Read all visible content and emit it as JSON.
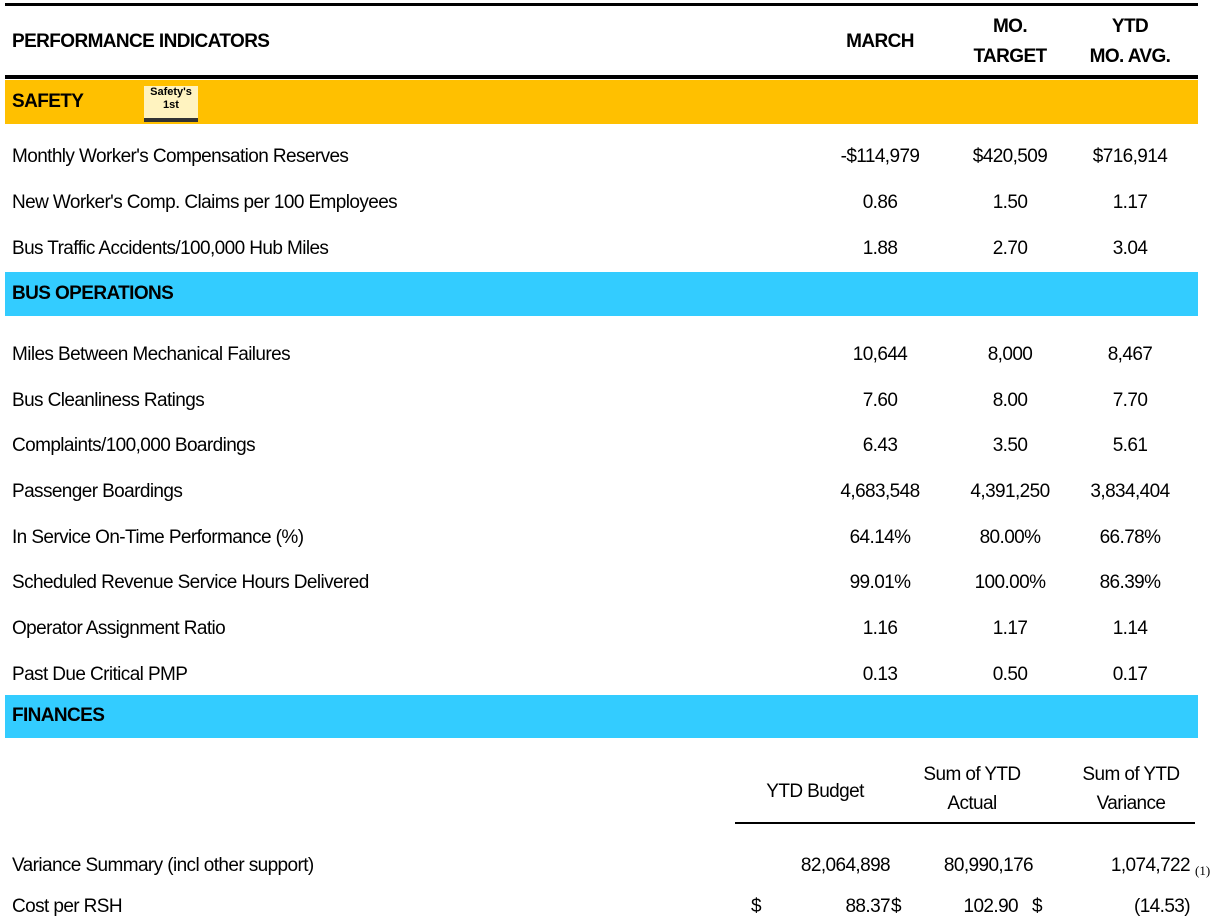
{
  "header": {
    "title": "PERFORMANCE INDICATORS",
    "columns": [
      [
        "MARCH"
      ],
      [
        "MO.",
        "TARGET"
      ],
      [
        "YTD",
        "MO. AVG."
      ]
    ]
  },
  "sections": [
    {
      "title": "SAFETY",
      "icon": [
        "Safety's",
        "1st"
      ],
      "rows": [
        [
          "Monthly Worker's Compensation Reserves",
          "-$114,979",
          "$420,509",
          "$716,914"
        ],
        [
          "New Worker's Comp. Claims per 100 Employees",
          "0.86",
          "1.50",
          "1.17"
        ],
        [
          "Bus Traffic Accidents/100,000 Hub Miles",
          "1.88",
          "2.70",
          "3.04"
        ]
      ]
    },
    {
      "title": "BUS OPERATIONS",
      "rows": [
        [
          "Miles Between Mechanical Failures",
          "10,644",
          "8,000",
          "8,467"
        ],
        [
          "Bus Cleanliness Ratings",
          "7.60",
          "8.00",
          "7.70"
        ],
        [
          "Complaints/100,000 Boardings",
          "6.43",
          "3.50",
          "5.61"
        ],
        [
          "Passenger Boardings",
          "4,683,548",
          "4,391,250",
          "3,834,404"
        ],
        [
          "In Service On-Time Performance (%)",
          "64.14%",
          "80.00%",
          "66.78%"
        ],
        [
          "Scheduled Revenue Service Hours Delivered",
          "99.01%",
          "100.00%",
          "86.39%"
        ],
        [
          "Operator Assignment Ratio",
          "1.16",
          "1.17",
          "1.14"
        ],
        [
          "Past Due Critical PMP",
          "0.13",
          "0.50",
          "0.17"
        ]
      ]
    }
  ],
  "finances": {
    "title": "FINANCES",
    "columns": [
      [
        "YTD Budget"
      ],
      [
        "Sum of YTD",
        "Actual"
      ],
      [
        "Sum of YTD",
        "Variance"
      ]
    ],
    "variance": {
      "label": "Variance Summary (incl other support)",
      "values": [
        "82,064,898",
        "80,990,176",
        "1,074,722"
      ],
      "note": "(1)"
    },
    "cost": {
      "label": "Cost per RSH",
      "values": [
        [
          "$",
          "88.37"
        ],
        [
          "$",
          "102.90"
        ],
        [
          "$",
          "(14.53)"
        ]
      ]
    }
  }
}
